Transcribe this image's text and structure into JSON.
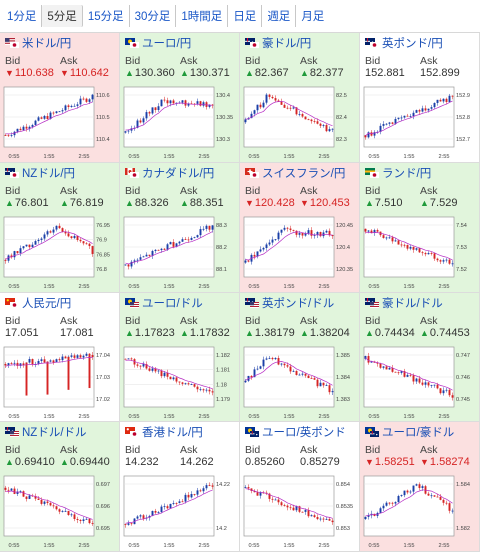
{
  "timeframe_tabs": [
    {
      "label": "1分足",
      "active": false
    },
    {
      "label": "5分足",
      "active": true
    },
    {
      "label": "15分足",
      "active": false
    },
    {
      "label": "30分足",
      "active": false
    },
    {
      "label": "1時間足",
      "active": false
    },
    {
      "label": "日足",
      "active": false
    },
    {
      "label": "週足",
      "active": false
    },
    {
      "label": "月足",
      "active": false
    }
  ],
  "labels": {
    "bid": "Bid",
    "ask": "Ask"
  },
  "colors": {
    "up_bg": "#e1f5dc",
    "down_bg": "#fbe0e0",
    "up_candle": "#1a3fa8",
    "down_candle": "#d62424",
    "ma_line": "#b62cc4",
    "up_arrow": "#1f9a3a",
    "down_arrow": "#d62424",
    "link": "#1a4fb5"
  },
  "cards": [
    {
      "name": "米ドル/円",
      "flag": "us-jp",
      "dir": "down",
      "bid": "110.638",
      "ask": "110.642",
      "chart": {
        "ticks": [
          "110.6",
          "110.5",
          "110.4"
        ],
        "xlabels": [
          "0:55",
          "1:55",
          "2:55"
        ],
        "trend": "up",
        "ylim": [
          110.35,
          110.66
        ]
      }
    },
    {
      "name": "ユーロ/円",
      "flag": "eu-jp",
      "dir": "up",
      "bid": "130.360",
      "ask": "130.371",
      "chart": {
        "ticks": [
          "130.4",
          "130.35",
          "130.3"
        ],
        "xlabels": [
          "0:55",
          "1:55",
          "2:55"
        ],
        "trend": "upflat",
        "ylim": [
          130.25,
          130.45
        ]
      }
    },
    {
      "name": "豪ドル/円",
      "flag": "au-jp",
      "dir": "up",
      "bid": "82.367",
      "ask": "82.377",
      "chart": {
        "ticks": [
          "82.5",
          "82.4",
          "82.3"
        ],
        "xlabels": [
          "0:55",
          "1:55",
          "2:55"
        ],
        "trend": "humpdown",
        "ylim": [
          82.25,
          82.55
        ]
      }
    },
    {
      "name": "英ポンド/円",
      "flag": "gb-jp",
      "dir": "none",
      "bid": "152.881",
      "ask": "152.899",
      "chart": {
        "ticks": [
          "152.9",
          "152.8",
          "152.7"
        ],
        "xlabels": [
          "0:55",
          "1:55",
          "2:55"
        ],
        "trend": "up",
        "ylim": [
          152.62,
          152.95
        ]
      }
    },
    {
      "name": "NZドル/円",
      "flag": "nz-jp",
      "dir": "up",
      "bid": "76.801",
      "ask": "76.819",
      "chart": {
        "ticks": [
          "76.95",
          "76.9",
          "76.85",
          "76.8"
        ],
        "xlabels": [
          "0:55",
          "1:55",
          "2:55"
        ],
        "trend": "updown",
        "ylim": [
          76.76,
          76.98
        ]
      }
    },
    {
      "name": "カナダドル/円",
      "flag": "ca-jp",
      "dir": "up",
      "bid": "88.326",
      "ask": "88.351",
      "chart": {
        "ticks": [
          "88.3",
          "88.2",
          "88.1"
        ],
        "xlabels": [
          "0:55",
          "1:55",
          "2:55"
        ],
        "trend": "up",
        "ylim": [
          88.05,
          88.36
        ]
      }
    },
    {
      "name": "スイスフラン/円",
      "flag": "ch-jp",
      "dir": "down",
      "bid": "120.428",
      "ask": "120.453",
      "chart": {
        "ticks": [
          "120.45",
          "120.4",
          "120.35"
        ],
        "xlabels": [
          "0:55",
          "1:55",
          "2:55"
        ],
        "trend": "upflat",
        "ylim": [
          120.28,
          120.47
        ]
      }
    },
    {
      "name": "ランド/円",
      "flag": "za-jp",
      "dir": "up",
      "bid": "7.510",
      "ask": "7.529",
      "chart": {
        "ticks": [
          "7.54",
          "7.53",
          "7.52"
        ],
        "xlabels": [
          "0:55",
          "1:55",
          "2:55"
        ],
        "trend": "down",
        "ylim": [
          7.505,
          7.552
        ]
      }
    },
    {
      "name": "人民元/円",
      "flag": "cn-jp",
      "dir": "none",
      "bid": "17.051",
      "ask": "17.081",
      "chart": {
        "ticks": [
          "17.04",
          "17.03",
          "17.02"
        ],
        "xlabels": [
          "0:55",
          "1:55",
          "2:55"
        ],
        "trend": "spike",
        "ylim": [
          17.0,
          17.055
        ]
      }
    },
    {
      "name": "ユーロ/ドル",
      "flag": "eu-us",
      "dir": "up",
      "bid": "1.17823",
      "ask": "1.17832",
      "chart": {
        "ticks": [
          "1.182",
          "1.181",
          "1.18",
          "1.179"
        ],
        "xlabels": [
          "0:55",
          "1:55",
          "2:55"
        ],
        "trend": "down",
        "ylim": [
          1.1785,
          1.1825
        ]
      }
    },
    {
      "name": "英ポンド/ドル",
      "flag": "gb-us",
      "dir": "up",
      "bid": "1.38179",
      "ask": "1.38204",
      "chart": {
        "ticks": [
          "1.385",
          "1.384",
          "1.383"
        ],
        "xlabels": [
          "0:55",
          "1:55",
          "2:55"
        ],
        "trend": "humpdown",
        "ylim": [
          1.3815,
          1.3862
        ]
      }
    },
    {
      "name": "豪ドル/ドル",
      "flag": "au-us",
      "dir": "up",
      "bid": "0.74434",
      "ask": "0.74453",
      "chart": {
        "ticks": [
          "0.747",
          "0.746",
          "0.745"
        ],
        "xlabels": [
          "0:55",
          "1:55",
          "2:55"
        ],
        "trend": "down",
        "ylim": [
          0.7443,
          0.7478
        ]
      }
    },
    {
      "name": "NZドル/ドル",
      "flag": "nz-us",
      "dir": "up",
      "bid": "0.69410",
      "ask": "0.69440",
      "chart": {
        "ticks": [
          "0.697",
          "0.696",
          "0.695"
        ],
        "xlabels": [
          "0:55",
          "1:55",
          "2:55"
        ],
        "trend": "down",
        "ylim": [
          0.694,
          0.6974
        ]
      }
    },
    {
      "name": "香港ドル/円",
      "flag": "hk-jp",
      "dir": "none",
      "bid": "14.232",
      "ask": "14.262",
      "chart": {
        "ticks": [
          "14.22",
          "14.2"
        ],
        "xlabels": [
          "0:55",
          "1:55",
          "2:55"
        ],
        "trend": "up",
        "ylim": [
          14.185,
          14.235
        ]
      }
    },
    {
      "name": "ユーロ/英ポンド",
      "flag": "eu-gb",
      "dir": "none",
      "bid": "0.85260",
      "ask": "0.85279",
      "chart": {
        "ticks": [
          "0.854",
          "0.8535",
          "0.853"
        ],
        "xlabels": [
          "0:55",
          "1:55",
          "2:55"
        ],
        "trend": "down",
        "ylim": [
          0.8524,
          0.8543
        ]
      }
    },
    {
      "name": "ユーロ/豪ドル",
      "flag": "eu-au",
      "dir": "down",
      "bid": "1.58251",
      "ask": "1.58274",
      "chart": {
        "ticks": [
          "1.584",
          "1.582"
        ],
        "xlabels": [
          "0:55",
          "1:55",
          "2:55"
        ],
        "trend": "updown",
        "ylim": [
          1.5805,
          1.585
        ]
      }
    }
  ]
}
